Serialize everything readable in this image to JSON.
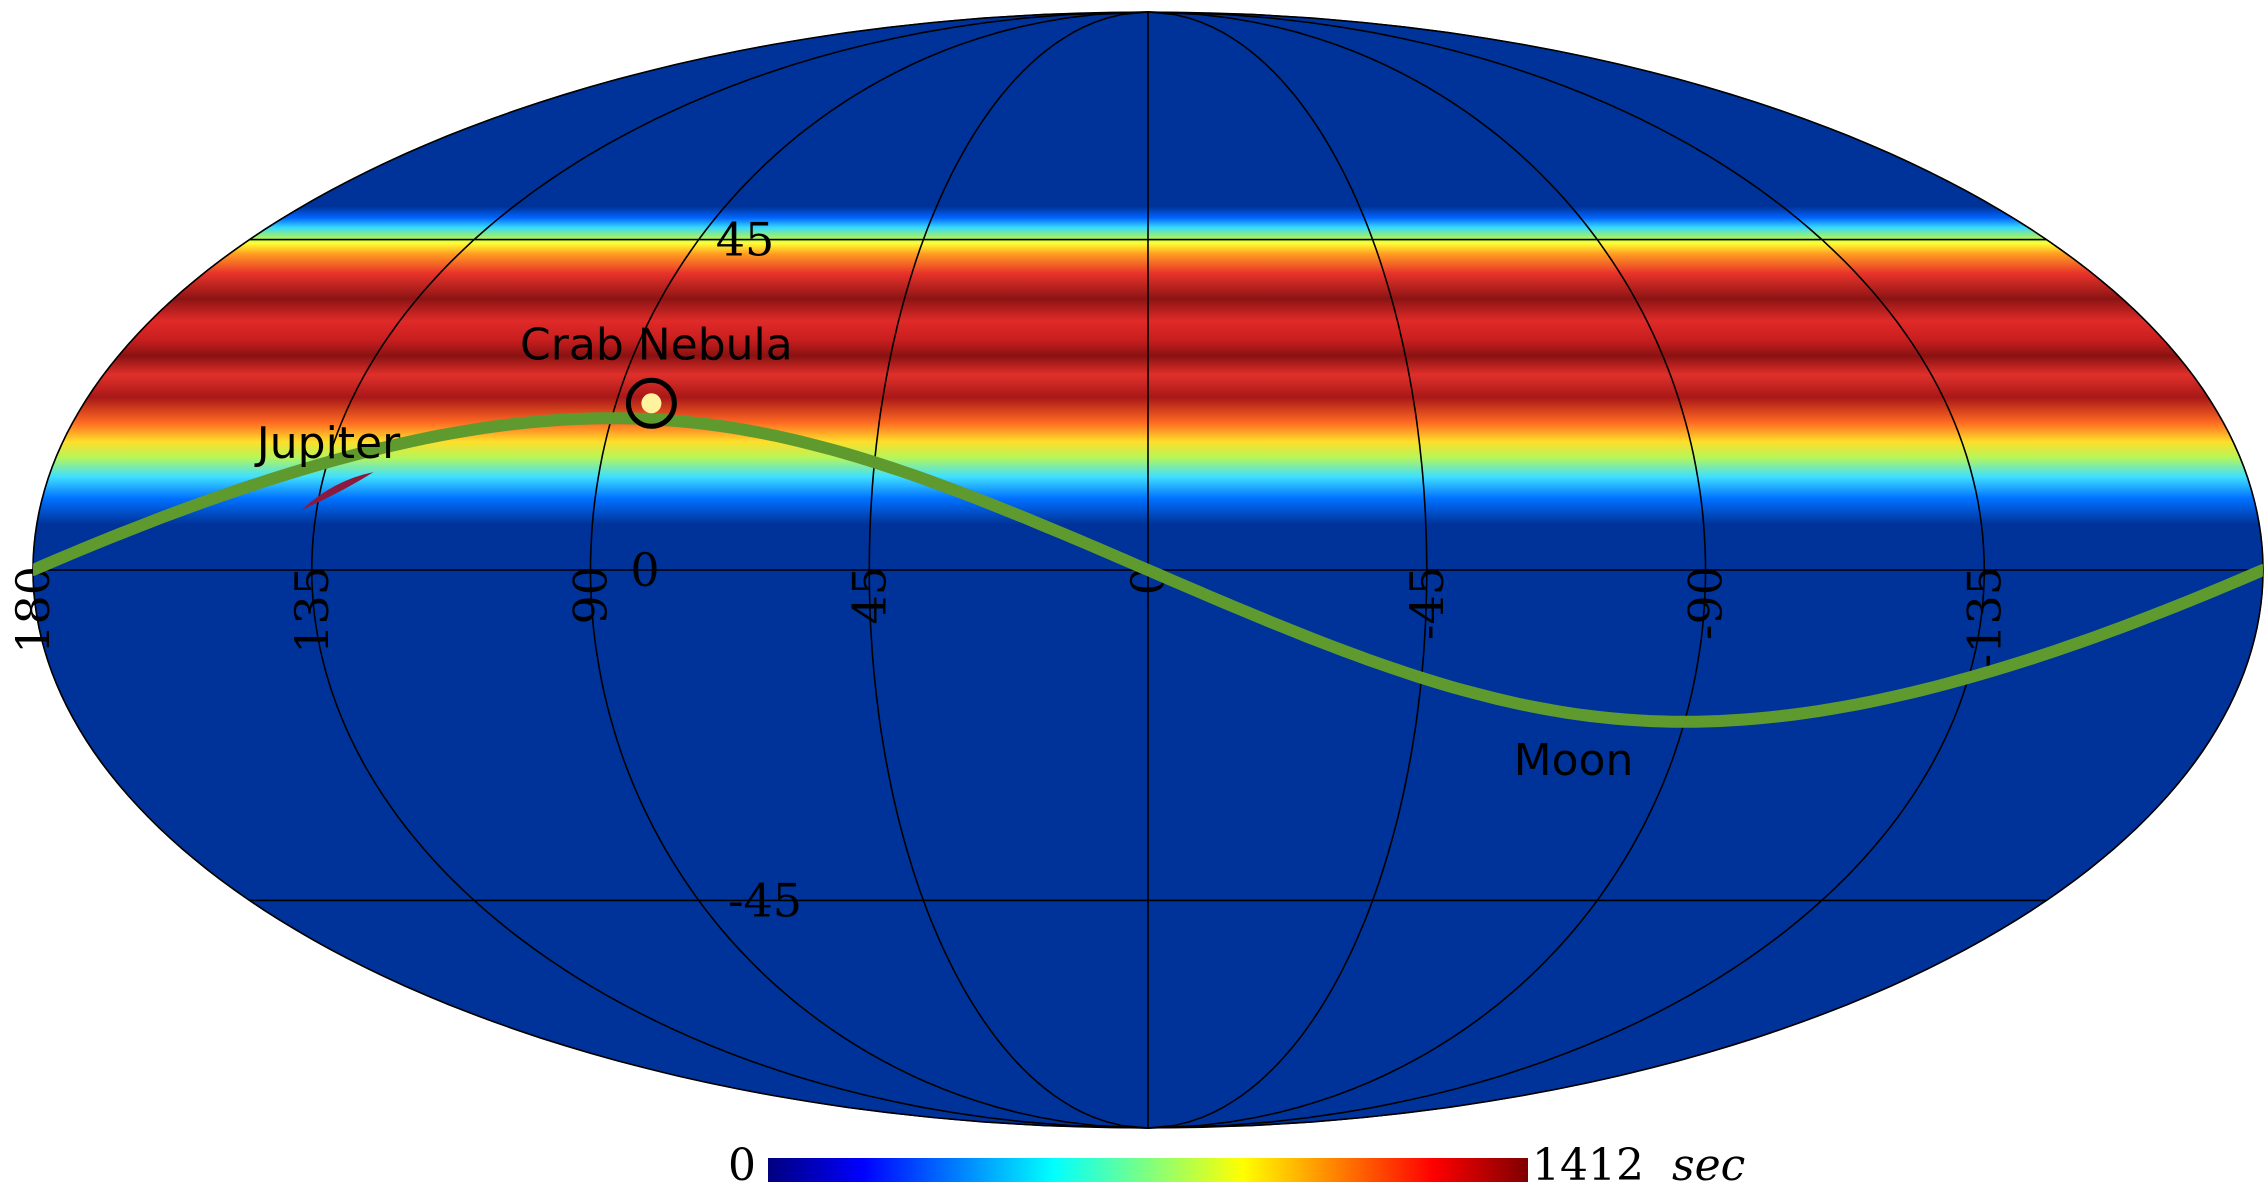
{
  "map": {
    "projection": "Mollweide",
    "colormap": "jet",
    "graticule": {
      "longitude_lines_deg": [
        -180,
        -135,
        -90,
        -45,
        0,
        45,
        90,
        135,
        180
      ],
      "latitude_lines_deg": [
        -45,
        0,
        45
      ],
      "longitude_labels": [
        {
          "lon": 180,
          "text": "180"
        },
        {
          "lon": 135,
          "text": "135"
        },
        {
          "lon": 90,
          "text": "90"
        },
        {
          "lon": 45,
          "text": "45"
        },
        {
          "lon": 0,
          "text": "0"
        },
        {
          "lon": -45,
          "text": "-45"
        },
        {
          "lon": -90,
          "text": "-90"
        },
        {
          "lon": -135,
          "text": "-135"
        }
      ],
      "latitude_labels": [
        {
          "lat": 45,
          "text": "45"
        },
        {
          "lat": 0,
          "text": "0"
        },
        {
          "lat": -45,
          "text": "-45"
        }
      ]
    },
    "exposure_band": {
      "center_lat_deg": 28,
      "half_width_deg": 22,
      "peak_value_sec": 1412
    },
    "annotations": {
      "crab_nebula": {
        "label": "Crab Nebula",
        "lon": 84,
        "lat": 22
      },
      "jupiter": {
        "label": "Jupiter",
        "lon": 133,
        "lat": 11
      },
      "moon": {
        "label": "Moon",
        "path_amplitude_deg": 20,
        "label_lon": -73,
        "label_lat": -25
      }
    },
    "colorbar": {
      "min_label": "0",
      "max_label": "1412",
      "unit": "sec",
      "colors": [
        "#00007f",
        "#0000ff",
        "#007fff",
        "#00ffff",
        "#7fff7f",
        "#ffff00",
        "#ff7f00",
        "#ff0000",
        "#7f0000"
      ]
    },
    "colors": {
      "background": "#003399",
      "moon_path": "#5f9a2e",
      "jupiter": "#8b1a3c",
      "crab_dot": "#fff3a0"
    }
  }
}
